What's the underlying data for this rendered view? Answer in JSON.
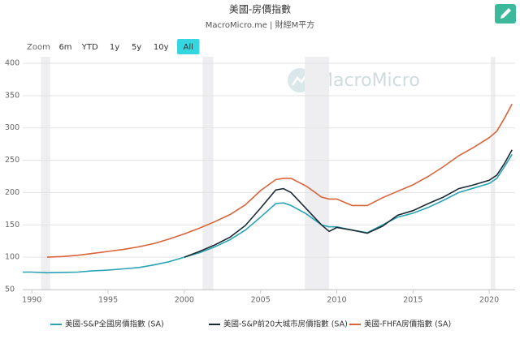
{
  "chart_data": {
    "type": "line",
    "title": "美國-房價指數",
    "subtitle": "MacroMicro.me | 財經M平方",
    "watermark": "MacroMicro",
    "x": [
      1989.4,
      1990,
      1991,
      1992,
      1993,
      1994,
      1995,
      1996,
      1997,
      1998,
      1999,
      2000,
      2001,
      2002,
      2003,
      2004,
      2005,
      2006,
      2006.5,
      2007,
      2008,
      2009,
      2009.5,
      2010,
      2011,
      2012,
      2013,
      2014,
      2015,
      2016,
      2017,
      2018,
      2019,
      2020,
      2020.5,
      2021,
      2021.5
    ],
    "series": [
      {
        "name": "美國-S&P全國房價指數 (SA)",
        "color": "#2aa3b6",
        "values": [
          77,
          77,
          76,
          76.5,
          77,
          79,
          80,
          82,
          84,
          88,
          93,
          100,
          107,
          116,
          127,
          142,
          162,
          183,
          184,
          180,
          167,
          150,
          147,
          147,
          142,
          138,
          150,
          162,
          168,
          177,
          188,
          200,
          207,
          214,
          222,
          240,
          259
        ]
      },
      {
        "name": "美國-S&P前20大城市房價指數 (SA)",
        "color": "#1b2b33",
        "values": [
          null,
          null,
          null,
          null,
          null,
          null,
          null,
          null,
          null,
          null,
          null,
          100,
          109,
          119,
          131,
          149,
          176,
          204,
          206,
          200,
          175,
          150,
          140,
          146,
          142,
          137,
          148,
          165,
          172,
          183,
          193,
          206,
          212,
          219,
          227,
          245,
          266
        ]
      },
      {
        "name": "美國-FHFA房價指數 (SA)",
        "color": "#d9643a",
        "values": [
          null,
          null,
          100,
          101,
          103,
          106,
          109,
          112,
          116,
          121,
          128,
          136,
          145,
          155,
          166,
          181,
          203,
          220,
          222,
          222,
          210,
          193,
          190,
          190,
          180,
          180,
          192,
          202,
          212,
          225,
          240,
          257,
          270,
          285,
          295,
          315,
          337
        ]
      }
    ],
    "recessions": [
      [
        1990.6,
        1991.2
      ],
      [
        2001.2,
        2001.9
      ],
      [
        2007.9,
        2009.5
      ],
      [
        2020.1,
        2020.4
      ]
    ],
    "xlim": [
      1989.4,
      2021.7
    ],
    "xticks": [
      1990,
      1995,
      2000,
      2005,
      2010,
      2015,
      2020
    ],
    "ylim": [
      50,
      400
    ],
    "yticks": [
      50,
      100,
      150,
      200,
      250,
      300,
      350,
      400
    ],
    "grid": true
  },
  "toolbar": {
    "label": "Zoom",
    "buttons": [
      "6m",
      "YTD",
      "1y",
      "5y",
      "10y",
      "All"
    ],
    "selected": 5
  }
}
